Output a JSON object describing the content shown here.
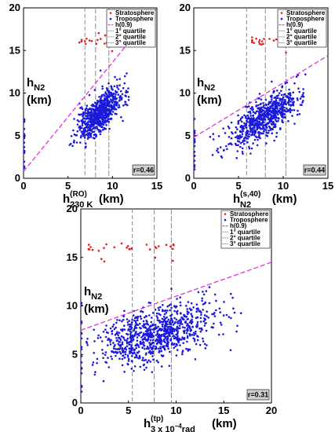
{
  "chart_data": [
    {
      "type": "scatter",
      "xlim": [
        0,
        15
      ],
      "ylim": [
        0,
        20
      ],
      "xticks": [
        "0",
        "5",
        "10",
        "15"
      ],
      "yticks": [
        "0",
        "5",
        "10",
        "15",
        "20"
      ],
      "ylabel": [
        "h",
        "N2",
        "(km)"
      ],
      "xlabel": {
        "base": "h",
        "sup": "(RO)",
        "sub": "230 K",
        "unit": "(km)"
      },
      "legend": [
        "Stratosphere",
        "Troposphere",
        "h(0.9)",
        "1° quartile",
        "2° quartile",
        "3° quartile"
      ],
      "r_label": "r=0.46",
      "fit": {
        "x0": 0,
        "y0": 0.8,
        "x1": 15,
        "y1": 20
      },
      "quartiles": [
        6.9,
        8.1,
        9.6
      ],
      "colors": {
        "strat": "#e0201e",
        "trop": "#1a1adb",
        "fit": "#e033e0",
        "quart": "#8a8a8a"
      },
      "params": {
        "seed": 11,
        "n": 700,
        "xmin": 5,
        "xmax": 12,
        "center": 8.6,
        "sd": 1.3,
        "slope": 0.85,
        "intercept": 0.3,
        "noise": 1.8,
        "strat": 20,
        "sx": [
          6,
          10.5
        ],
        "sy": [
          14.5,
          19
        ]
      },
      "ticks_label": "h"
    },
    {
      "type": "scatter",
      "xlim": [
        0,
        15
      ],
      "ylim": [
        0,
        20
      ],
      "xticks": [
        "0",
        "5",
        "10",
        "15"
      ],
      "yticks": [
        "0",
        "5",
        "10",
        "15",
        "20"
      ],
      "ylabel": [
        "h",
        "N2",
        "(km)"
      ],
      "xlabel": {
        "base": "h",
        "sup": "(s,40)",
        "sub": "N2",
        "unit": "(km)"
      },
      "legend": [
        "Stratosphere",
        "Troposphere",
        "h(0.9)",
        "1° quartile",
        "2° quartile",
        "3° quartile"
      ],
      "r_label": "r=0.44",
      "fit": {
        "x0": 0,
        "y0": 4.8,
        "x1": 15,
        "y1": 14.4
      },
      "quartiles": [
        5.9,
        8.0,
        10.3
      ],
      "colors": {
        "strat": "#e0201e",
        "trop": "#1a1adb",
        "fit": "#e033e0",
        "quart": "#8a8a8a"
      },
      "params": {
        "seed": 23,
        "n": 700,
        "xmin": 1.5,
        "xmax": 12.5,
        "center": 8.1,
        "sd": 2.0,
        "slope": 0.65,
        "intercept": 2.0,
        "noise": 1.8,
        "strat": 25,
        "sx": [
          6,
          11
        ],
        "sy": [
          14.5,
          19
        ]
      }
    },
    {
      "type": "scatter",
      "xlim": [
        0,
        20
      ],
      "ylim": [
        0,
        20
      ],
      "xticks": [
        "0",
        "5",
        "10",
        "15",
        "20"
      ],
      "yticks": [
        "0",
        "5",
        "10",
        "15",
        "20"
      ],
      "ylabel": [
        "h",
        "N2",
        "(km)"
      ],
      "xlabel": {
        "base": "h",
        "sup": "(tp)",
        "sub": "3 x 10",
        "sub2": "−4",
        "sub3": "rad",
        "unit": "(km)"
      },
      "legend": [
        "Stratosphere",
        "Troposphere",
        "h(0.9)",
        "1° quartile",
        "2° quartile",
        "3° quartile"
      ],
      "r_label": "r=0.31",
      "fit": {
        "x0": 0,
        "y0": 7.5,
        "x1": 20,
        "y1": 14.5
      },
      "quartiles": [
        5.4,
        7.7,
        9.5
      ],
      "colors": {
        "strat": "#e0201e",
        "trop": "#1a1adb",
        "fit": "#e033e0",
        "quart": "#8a8a8a"
      },
      "params": {
        "seed": 37,
        "n": 900,
        "xmin": 0.5,
        "xmax": 17,
        "center": 7.8,
        "sd": 3.0,
        "slope": 0.25,
        "intercept": 5.2,
        "noise": 2.3,
        "strat": 30,
        "sx": [
          0.5,
          10
        ],
        "sy": [
          14.5,
          17
        ]
      }
    }
  ]
}
